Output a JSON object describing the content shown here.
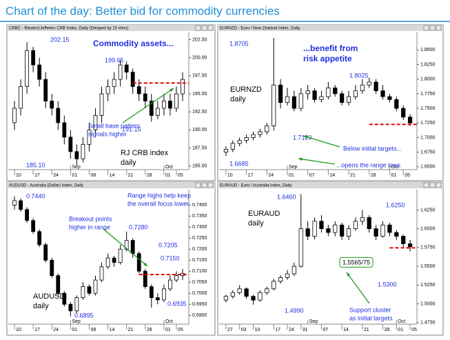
{
  "header": {
    "title": "Chart of the day: Better bid for commodity currencies"
  },
  "chart_data": [
    {
      "type": "candlestick",
      "panel_title": "CRBC - Reuters/Jefferies CRB Index, Daily (Delayed by 15 mins)",
      "xlim": [
        -1,
        28
      ],
      "xticks": [
        {
          "value": 0,
          "label": "10"
        },
        {
          "value": 3,
          "label": "17"
        },
        {
          "value": 6,
          "label": "24"
        },
        {
          "value": 9,
          "label": "01"
        },
        {
          "value": 12,
          "label": "08"
        },
        {
          "value": 15,
          "label": "14"
        },
        {
          "value": 18,
          "label": "21"
        },
        {
          "value": 21,
          "label": "28"
        },
        {
          "value": 24,
          "label": "01"
        },
        {
          "value": 26,
          "label": "05"
        }
      ],
      "month_ticks": [
        {
          "value": 9,
          "label": "Sep"
        },
        {
          "value": 24,
          "label": "Oct"
        }
      ],
      "ylim": [
        184.5,
        203.5
      ],
      "yticks": [
        {
          "value": 185,
          "label": "185.00"
        },
        {
          "value": 187.5,
          "label": "187.50"
        },
        {
          "value": 190,
          "label": "190.00"
        },
        {
          "value": 192.5,
          "label": "192.50"
        },
        {
          "value": 195,
          "label": "195.00"
        },
        {
          "value": 197.5,
          "label": "197.50"
        },
        {
          "value": 200,
          "label": "200.00"
        },
        {
          "value": 202.5,
          "label": "202.50"
        }
      ],
      "open": [
        191,
        193,
        196,
        201,
        199,
        197,
        194,
        193,
        191,
        189,
        187,
        186,
        188,
        190,
        192,
        195,
        196,
        197,
        199,
        198,
        196,
        195,
        194,
        192,
        193,
        194,
        193,
        195
      ],
      "high": [
        194,
        197,
        202.15,
        201.5,
        200,
        198,
        195,
        194,
        192,
        190,
        188,
        189,
        191,
        193,
        196,
        197,
        198,
        199.65,
        199.5,
        198.5,
        197,
        196,
        195,
        194,
        195,
        195,
        196,
        198
      ],
      "low": [
        190,
        192,
        195,
        198,
        196,
        193,
        192,
        190,
        188,
        186,
        185.1,
        185.5,
        187,
        189,
        191,
        194,
        195,
        196,
        197,
        195,
        194,
        193,
        191.15,
        191.5,
        192,
        192,
        192.5,
        194
      ],
      "close": [
        193,
        196,
        201,
        199,
        197,
        194,
        193,
        191,
        189,
        187,
        186,
        188,
        190,
        192,
        195,
        196,
        197,
        199,
        198,
        196,
        195,
        194,
        192,
        193,
        194,
        193,
        195,
        197
      ],
      "level": 196.5,
      "level_color": "#e00000",
      "up_color": "#ffffff",
      "down_color": "#000000",
      "annotations": [
        {
          "text": [
            "202.15"
          ]
        },
        {
          "text": [
            "Commodity assets..."
          ]
        },
        {
          "text": [
            "199.65"
          ]
        },
        {
          "text": [
            "Small base pattern",
            "signals higher"
          ]
        },
        {
          "text": [
            "191.15"
          ]
        },
        {
          "text": [
            "RJ CRB index",
            "daily"
          ]
        },
        {
          "text": [
            "185.10"
          ]
        }
      ]
    },
    {
      "type": "candlestick",
      "panel_title": "EURNZD - Euro / New Zealand Index, Daily",
      "xlim": [
        -1,
        28
      ],
      "xticks": [
        {
          "value": 0,
          "label": "10"
        },
        {
          "value": 3,
          "label": "17"
        },
        {
          "value": 6,
          "label": "24"
        },
        {
          "value": 9,
          "label": "01"
        },
        {
          "value": 12,
          "label": "07"
        },
        {
          "value": 15,
          "label": "14"
        },
        {
          "value": 18,
          "label": "21"
        },
        {
          "value": 21,
          "label": "28"
        },
        {
          "value": 24,
          "label": "01"
        },
        {
          "value": 26,
          "label": "05"
        }
      ],
      "month_ticks": [
        {
          "value": 9,
          "label": "Sep"
        },
        {
          "value": 24,
          "label": "Oct"
        }
      ],
      "ylim": [
        1.645,
        1.88
      ],
      "yticks": [
        {
          "value": 1.65,
          "label": "1.6500"
        },
        {
          "value": 1.675,
          "label": "1.6750"
        },
        {
          "value": 1.7,
          "label": "1.7000"
        },
        {
          "value": 1.725,
          "label": "1.7250"
        },
        {
          "value": 1.75,
          "label": "1.7500"
        },
        {
          "value": 1.775,
          "label": "1.7750"
        },
        {
          "value": 1.8,
          "label": "1.8000"
        },
        {
          "value": 1.825,
          "label": "1.8250"
        },
        {
          "value": 1.85,
          "label": "1.8500"
        }
      ],
      "open": [
        1.675,
        1.68,
        1.69,
        1.695,
        1.7,
        1.705,
        1.71,
        1.72,
        1.79,
        1.76,
        1.77,
        1.75,
        1.775,
        1.78,
        1.765,
        1.77,
        1.785,
        1.775,
        1.76,
        1.77,
        1.78,
        1.79,
        1.795,
        1.78,
        1.77,
        1.765,
        1.75,
        1.735
      ],
      "high": [
        1.685,
        1.695,
        1.7,
        1.705,
        1.71,
        1.715,
        1.725,
        1.8705,
        1.8,
        1.785,
        1.78,
        1.785,
        1.79,
        1.785,
        1.78,
        1.795,
        1.79,
        1.78,
        1.78,
        1.79,
        1.8,
        1.8025,
        1.8,
        1.79,
        1.775,
        1.77,
        1.755,
        1.74
      ],
      "low": [
        1.6685,
        1.675,
        1.685,
        1.69,
        1.695,
        1.7,
        1.705,
        1.712,
        1.75,
        1.755,
        1.745,
        1.745,
        1.765,
        1.76,
        1.76,
        1.765,
        1.77,
        1.755,
        1.755,
        1.765,
        1.775,
        1.785,
        1.775,
        1.765,
        1.76,
        1.745,
        1.73,
        1.72
      ],
      "close": [
        1.68,
        1.69,
        1.695,
        1.7,
        1.705,
        1.71,
        1.72,
        1.79,
        1.76,
        1.77,
        1.75,
        1.775,
        1.78,
        1.765,
        1.77,
        1.785,
        1.775,
        1.76,
        1.77,
        1.78,
        1.79,
        1.795,
        1.78,
        1.77,
        1.765,
        1.75,
        1.735,
        1.725
      ],
      "level": 1.7225,
      "level_color": "#e00000",
      "up_color": "#ffffff",
      "down_color": "#000000",
      "annotations": [
        {
          "text": [
            "1.8705"
          ]
        },
        {
          "text": [
            "...benefit from",
            "risk appetite"
          ]
        },
        {
          "text": [
            "EURNZD",
            "daily"
          ]
        },
        {
          "text": [
            "1.8025"
          ]
        },
        {
          "text": [
            "1.7120"
          ]
        },
        {
          "text": [
            "Below initial targets..."
          ]
        },
        {
          "text": [
            "1.6685"
          ]
        },
        {
          "text": [
            "...opens the range lows"
          ]
        }
      ]
    },
    {
      "type": "candlestick",
      "panel_title": "AUDUSD - Australia (Dollar) Index, Daily",
      "xlim": [
        -1,
        28
      ],
      "xticks": [
        {
          "value": 0,
          "label": "10"
        },
        {
          "value": 3,
          "label": "17"
        },
        {
          "value": 6,
          "label": "24"
        },
        {
          "value": 9,
          "label": "01"
        },
        {
          "value": 12,
          "label": "08"
        },
        {
          "value": 15,
          "label": "14"
        },
        {
          "value": 18,
          "label": "21"
        },
        {
          "value": 21,
          "label": "28"
        },
        {
          "value": 24,
          "label": "01"
        },
        {
          "value": 26,
          "label": "05"
        }
      ],
      "month_ticks": [
        {
          "value": 9,
          "label": "Sep"
        },
        {
          "value": 24,
          "label": "Oct"
        }
      ],
      "ylim": [
        0.686,
        0.747
      ],
      "yticks": [
        {
          "value": 0.69,
          "label": "0.6900"
        },
        {
          "value": 0.695,
          "label": "0.6950"
        },
        {
          "value": 0.7,
          "label": "0.7000"
        },
        {
          "value": 0.705,
          "label": "0.7050"
        },
        {
          "value": 0.71,
          "label": "0.7100"
        },
        {
          "value": 0.715,
          "label": "0.7150"
        },
        {
          "value": 0.72,
          "label": "0.7200"
        },
        {
          "value": 0.725,
          "label": "0.7250"
        },
        {
          "value": 0.73,
          "label": "0.7300"
        },
        {
          "value": 0.735,
          "label": "0.7350"
        },
        {
          "value": 0.74,
          "label": "0.7400"
        }
      ],
      "open": [
        0.74,
        0.742,
        0.738,
        0.733,
        0.728,
        0.722,
        0.715,
        0.708,
        0.7,
        0.695,
        0.692,
        0.698,
        0.703,
        0.7,
        0.706,
        0.712,
        0.716,
        0.714,
        0.72,
        0.724,
        0.718,
        0.71,
        0.703,
        0.698,
        0.697,
        0.702,
        0.706,
        0.708
      ],
      "high": [
        0.744,
        0.743,
        0.739,
        0.734,
        0.729,
        0.723,
        0.716,
        0.709,
        0.701,
        0.696,
        0.699,
        0.705,
        0.704,
        0.708,
        0.714,
        0.718,
        0.717,
        0.722,
        0.728,
        0.725,
        0.719,
        0.711,
        0.704,
        0.7,
        0.704,
        0.708,
        0.71,
        0.711
      ],
      "low": [
        0.738,
        0.737,
        0.732,
        0.727,
        0.721,
        0.714,
        0.707,
        0.699,
        0.694,
        0.6895,
        0.691,
        0.697,
        0.699,
        0.699,
        0.705,
        0.711,
        0.712,
        0.713,
        0.719,
        0.716,
        0.709,
        0.702,
        0.6935,
        0.695,
        0.696,
        0.701,
        0.705,
        0.706
      ],
      "close": [
        0.742,
        0.738,
        0.733,
        0.728,
        0.722,
        0.715,
        0.708,
        0.7,
        0.695,
        0.692,
        0.698,
        0.703,
        0.7,
        0.706,
        0.712,
        0.716,
        0.714,
        0.72,
        0.724,
        0.718,
        0.71,
        0.703,
        0.698,
        0.697,
        0.702,
        0.706,
        0.708,
        0.709
      ],
      "level": 0.7085,
      "level_color": "#e00000",
      "up_color": "#ffffff",
      "down_color": "#000000",
      "annotations": [
        {
          "text": [
            "0.7440"
          ]
        },
        {
          "text": [
            "Range highs help keep",
            "the overall focus lower"
          ]
        },
        {
          "text": [
            "Breakout points",
            "higher in range"
          ]
        },
        {
          "text": [
            "0.7280"
          ]
        },
        {
          "text": [
            "0.7205"
          ]
        },
        {
          "text": [
            "0.7150"
          ]
        },
        {
          "text": [
            "AUDUSD",
            "daily"
          ]
        },
        {
          "text": [
            "0.6895"
          ]
        },
        {
          "text": [
            "0.6935"
          ]
        }
      ]
    },
    {
      "type": "candlestick",
      "panel_title": "EURAUD - Euro / Australia Index, Daily",
      "xlim": [
        -1,
        28
      ],
      "xticks": [
        {
          "value": 0,
          "label": "27"
        },
        {
          "value": 2,
          "label": "03"
        },
        {
          "value": 4,
          "label": "10"
        },
        {
          "value": 7,
          "label": "17"
        },
        {
          "value": 9,
          "label": "24"
        },
        {
          "value": 11,
          "label": "31"
        },
        {
          "value": 14,
          "label": "07"
        },
        {
          "value": 17,
          "label": "14"
        },
        {
          "value": 20,
          "label": "21"
        },
        {
          "value": 23,
          "label": "28"
        },
        {
          "value": 25,
          "label": "01"
        },
        {
          "value": 27,
          "label": "05"
        }
      ],
      "month_ticks": [
        {
          "value": 12,
          "label": "Sep"
        },
        {
          "value": 25,
          "label": "Oct"
        }
      ],
      "ylim": [
        1.473,
        1.652
      ],
      "yticks": [
        {
          "value": 1.475,
          "label": "1.4750"
        },
        {
          "value": 1.5,
          "label": "1.5000"
        },
        {
          "value": 1.525,
          "label": "1.5250"
        },
        {
          "value": 1.55,
          "label": "1.5500"
        },
        {
          "value": 1.575,
          "label": "1.5750"
        },
        {
          "value": 1.6,
          "label": "1.6000"
        },
        {
          "value": 1.625,
          "label": "1.6250"
        }
      ],
      "open": [
        1.505,
        1.51,
        1.515,
        1.52,
        1.51,
        1.505,
        1.515,
        1.52,
        1.53,
        1.535,
        1.54,
        1.55,
        1.6,
        1.59,
        1.61,
        1.6,
        1.595,
        1.605,
        1.59,
        1.6,
        1.61,
        1.615,
        1.6,
        1.59,
        1.605,
        1.595,
        1.59,
        1.58
      ],
      "high": [
        1.512,
        1.518,
        1.525,
        1.522,
        1.512,
        1.518,
        1.523,
        1.533,
        1.538,
        1.545,
        1.555,
        1.646,
        1.61,
        1.615,
        1.618,
        1.605,
        1.61,
        1.608,
        1.605,
        1.615,
        1.625,
        1.618,
        1.605,
        1.61,
        1.608,
        1.598,
        1.592,
        1.585
      ],
      "low": [
        1.502,
        1.507,
        1.512,
        1.507,
        1.499,
        1.503,
        1.512,
        1.518,
        1.527,
        1.532,
        1.537,
        1.548,
        1.585,
        1.586,
        1.595,
        1.59,
        1.59,
        1.585,
        1.585,
        1.597,
        1.605,
        1.595,
        1.585,
        1.588,
        1.59,
        1.585,
        1.575,
        1.57
      ],
      "close": [
        1.51,
        1.515,
        1.52,
        1.51,
        1.505,
        1.515,
        1.52,
        1.53,
        1.535,
        1.54,
        1.55,
        1.6,
        1.59,
        1.61,
        1.6,
        1.595,
        1.605,
        1.59,
        1.6,
        1.61,
        1.615,
        1.6,
        1.59,
        1.605,
        1.595,
        1.59,
        1.58,
        1.576
      ],
      "level": 1.5745,
      "level_color": "#e00000",
      "up_color": "#ffffff",
      "down_color": "#000000",
      "annotations": [
        {
          "text": [
            "1.6460"
          ]
        },
        {
          "text": [
            "EURAUD",
            "daily"
          ]
        },
        {
          "text": [
            "1.6250"
          ]
        },
        {
          "text": [
            "1.5565/75"
          ]
        },
        {
          "text": [
            "1.5300"
          ]
        },
        {
          "text": [
            "1.4990"
          ]
        },
        {
          "text": [
            "Support cluster",
            "as initial targets"
          ]
        }
      ]
    }
  ]
}
